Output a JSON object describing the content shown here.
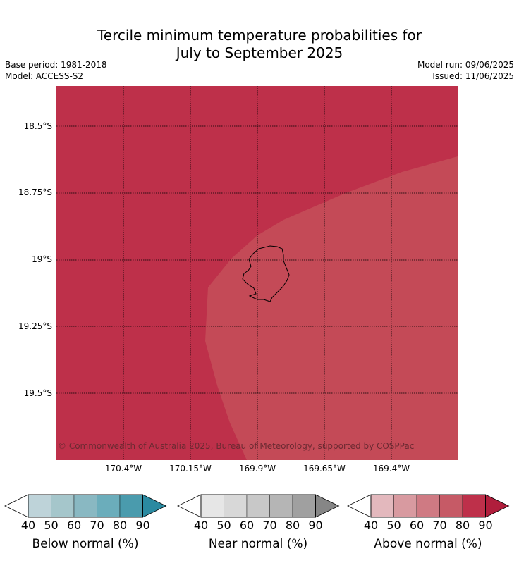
{
  "title_line1": "Tercile minimum temperature probabilities for",
  "title_line2": "July to September 2025",
  "base_period": "Base period: 1981-2018",
  "model": "Model: ACCESS-S2",
  "model_run": "Model run: 09/06/2025",
  "issued": "Issued: 11/06/2025",
  "copyright": "© Commonwealth of Australia 2025, Bureau of Meteorology, supported by COSPPac",
  "lat_labels": [
    "18.5°S",
    "18.75°S",
    "19°S",
    "19.25°S",
    "19.5°S"
  ],
  "lon_labels": [
    "170.4°W",
    "170.15°W",
    "169.9°W",
    "169.65°W",
    "169.4°W"
  ],
  "map_colors": {
    "above_80_90": "#be304a",
    "above_70_80": "#c44a57"
  },
  "legends": [
    {
      "title": "Below normal (%)",
      "ticks": [
        "40",
        "50",
        "60",
        "70",
        "80",
        "90"
      ],
      "colors": [
        "#ffffff",
        "#bed3d9",
        "#a5c6cb",
        "#89b8c2",
        "#6badbb",
        "#4a9bad",
        "#2a8aa1"
      ]
    },
    {
      "title": "Near normal (%)",
      "ticks": [
        "40",
        "50",
        "60",
        "70",
        "80",
        "90"
      ],
      "colors": [
        "#ffffff",
        "#e6e6e6",
        "#d8d8d8",
        "#c8c8c8",
        "#b5b5b5",
        "#a0a0a0",
        "#868686"
      ]
    },
    {
      "title": "Above normal (%)",
      "ticks": [
        "40",
        "50",
        "60",
        "70",
        "80",
        "90"
      ],
      "colors": [
        "#ffffff",
        "#e3b8bd",
        "#d89aa0",
        "#cf7a83",
        "#c65a66",
        "#be304a",
        "#b01e3c"
      ]
    }
  ]
}
